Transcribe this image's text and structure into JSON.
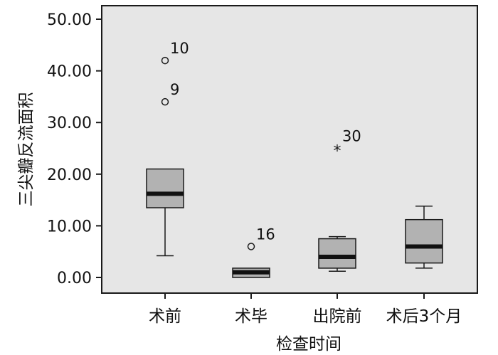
{
  "chart_data": {
    "type": "box",
    "xlabel": "检查时间",
    "ylabel": "三尖瓣反流面积",
    "ylim": [
      0,
      50
    ],
    "yticks": [
      0,
      10,
      20,
      30,
      40,
      50
    ],
    "ytick_labels": [
      "0.00",
      "10.00",
      "20.00",
      "30.00",
      "40.00",
      "50.00"
    ],
    "categories": [
      "术前",
      "术毕",
      "出院前",
      "术后3个月"
    ],
    "boxes": [
      {
        "category": "术前",
        "whisker_low": 4.2,
        "q1": 13.5,
        "median": 16.2,
        "q3": 21.0,
        "whisker_high": 21.0
      },
      {
        "category": "术毕",
        "whisker_low": 0.0,
        "q1": 0.0,
        "median": 1.0,
        "q3": 1.8,
        "whisker_high": 1.8
      },
      {
        "category": "出院前",
        "whisker_low": 1.2,
        "q1": 1.8,
        "median": 4.0,
        "q3": 7.5,
        "whisker_high": 7.9
      },
      {
        "category": "术后3个月",
        "whisker_low": 1.8,
        "q1": 2.8,
        "median": 6.0,
        "q3": 11.2,
        "whisker_high": 13.8
      }
    ],
    "outliers": [
      {
        "category": "术前",
        "value": 42.0,
        "label": "10",
        "marker": "circle"
      },
      {
        "category": "术前",
        "value": 34.0,
        "label": "9",
        "marker": "circle"
      },
      {
        "category": "术毕",
        "value": 6.0,
        "label": "16",
        "marker": "circle"
      },
      {
        "category": "出院前",
        "value": 25.0,
        "label": "30",
        "marker": "star"
      }
    ],
    "colors": {
      "plot_background": "#e6e6e6",
      "box_fill": "#b2b2b2",
      "stroke": "#1a1a1a",
      "median": "#111111"
    },
    "grid": false
  }
}
